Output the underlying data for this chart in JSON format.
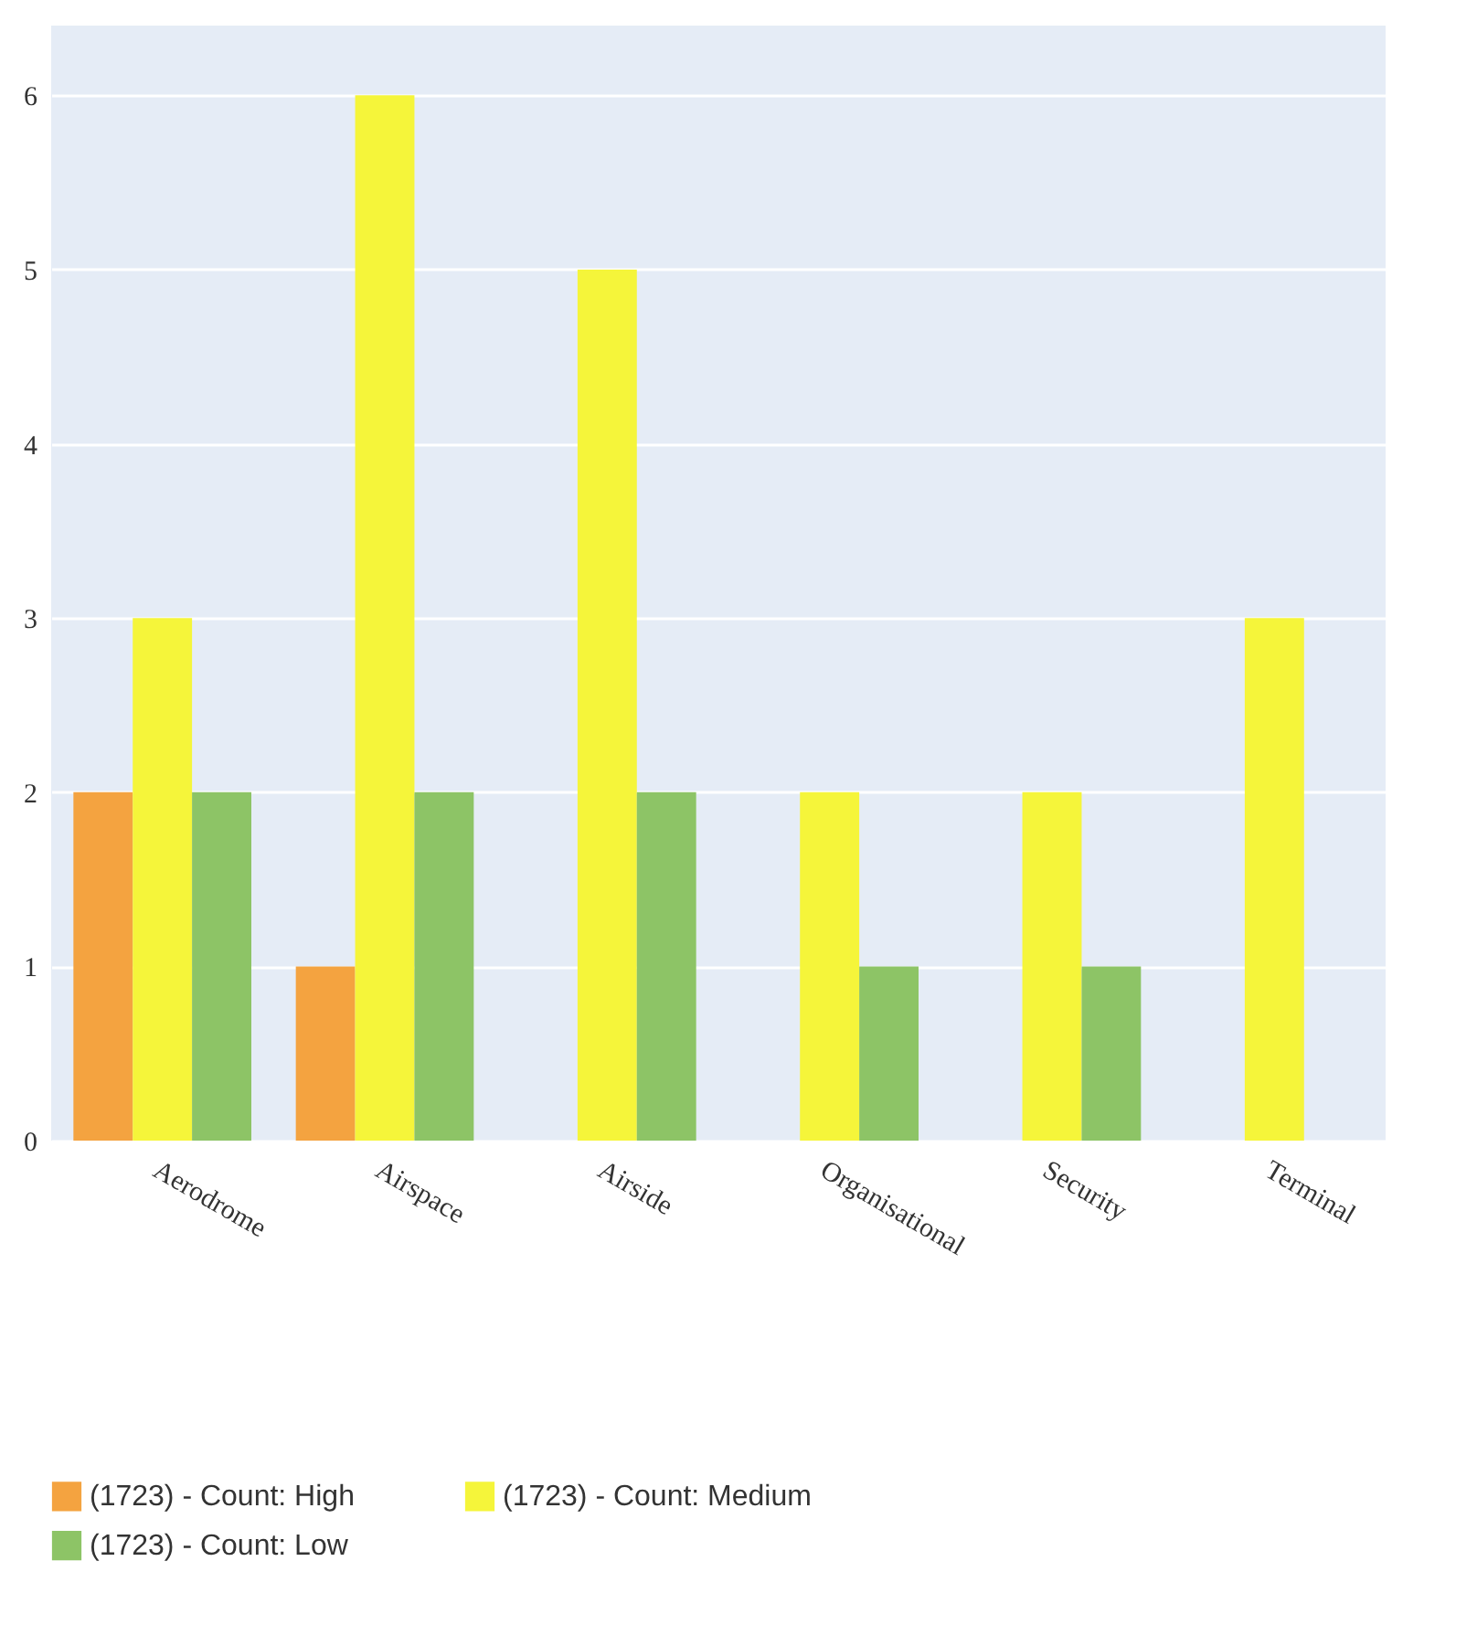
{
  "chart_data": {
    "type": "bar",
    "categories": [
      "Aerodrome",
      "Airspace",
      "Airside",
      "Organisational",
      "Security",
      "Terminal"
    ],
    "series": [
      {
        "name": "(1723) - Count: High",
        "color": "#f4a340",
        "values": [
          2,
          1,
          null,
          null,
          null,
          null
        ]
      },
      {
        "name": "(1723) - Count: Medium",
        "color": "#f5f53a",
        "values": [
          3,
          6,
          5,
          2,
          2,
          3
        ]
      },
      {
        "name": "(1723) - Count: Low",
        "color": "#8dc466",
        "values": [
          2,
          2,
          2,
          1,
          1,
          null
        ]
      }
    ],
    "ylim": [
      0,
      6.4
    ],
    "yticks": [
      0,
      1,
      2,
      3,
      4,
      5,
      6
    ],
    "grid": "y",
    "legend": "bottom"
  }
}
